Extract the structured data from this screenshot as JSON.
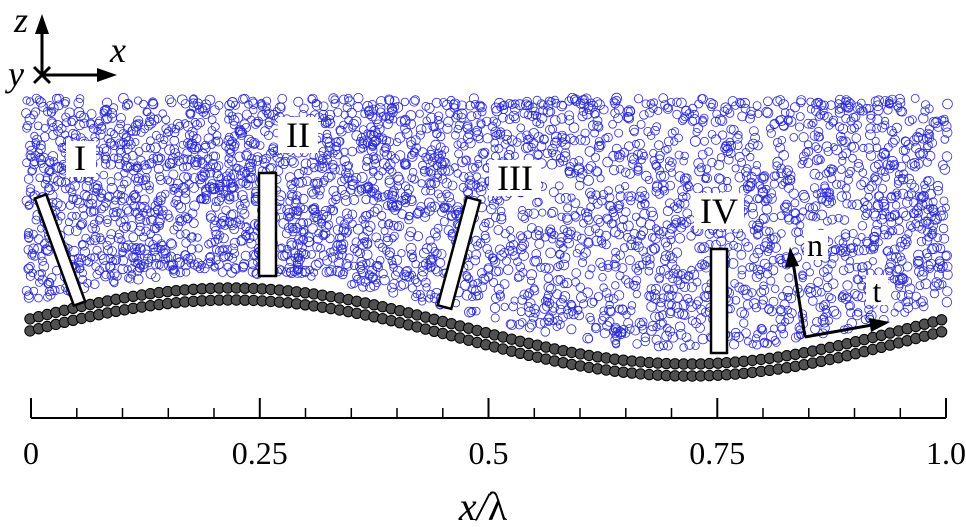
{
  "axes_glyph": {
    "z_label": "z",
    "x_label": "x",
    "y_label": "y"
  },
  "probe_labels": [
    "I",
    "II",
    "III",
    "IV"
  ],
  "vectors": {
    "normal_label": "n",
    "tangent_label": "t"
  },
  "ruler": {
    "tick_labels": [
      "0",
      "0.25",
      "0.5",
      "0.75",
      "1.0"
    ],
    "major_ticks": [
      0,
      0.25,
      0.5,
      0.75,
      1.0
    ],
    "minor_step": 0.05,
    "axis_label_main": "x/",
    "axis_label_symbol": "λ"
  },
  "colors": {
    "particle_stroke": "#2b2bd6",
    "wall_fill": "#505050",
    "ink": "#000000"
  }
}
